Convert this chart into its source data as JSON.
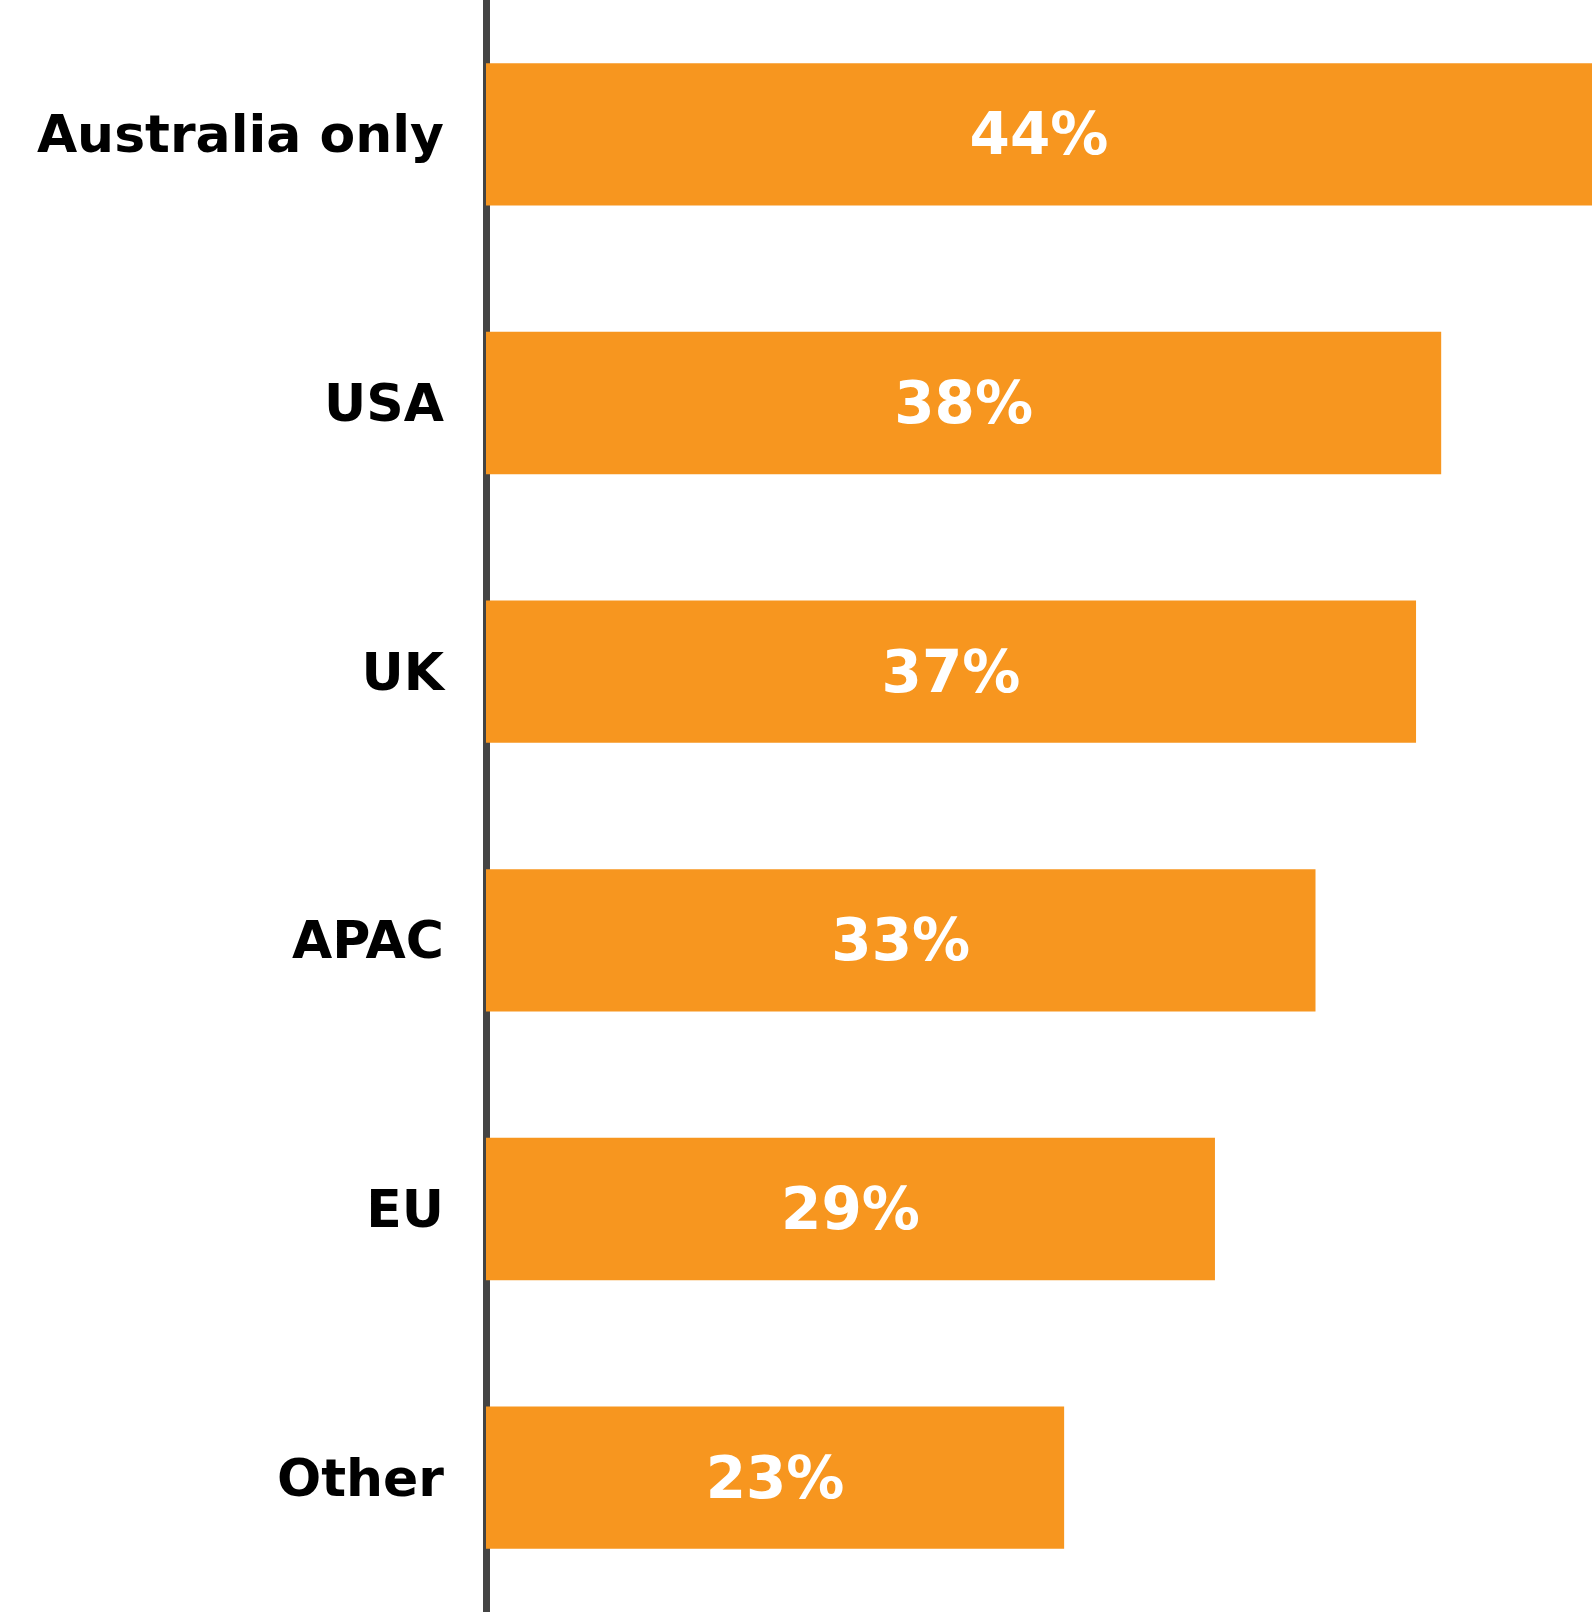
{
  "chart_data": {
    "type": "bar",
    "orientation": "horizontal",
    "categories": [
      "Australia only",
      "USA",
      "UK",
      "APAC",
      "EU",
      "Other"
    ],
    "values": [
      44,
      38,
      37,
      33,
      29,
      23
    ],
    "value_labels": [
      "44%",
      "38%",
      "37%",
      "33%",
      "29%",
      "23%"
    ],
    "color": "#f7961f"
  }
}
